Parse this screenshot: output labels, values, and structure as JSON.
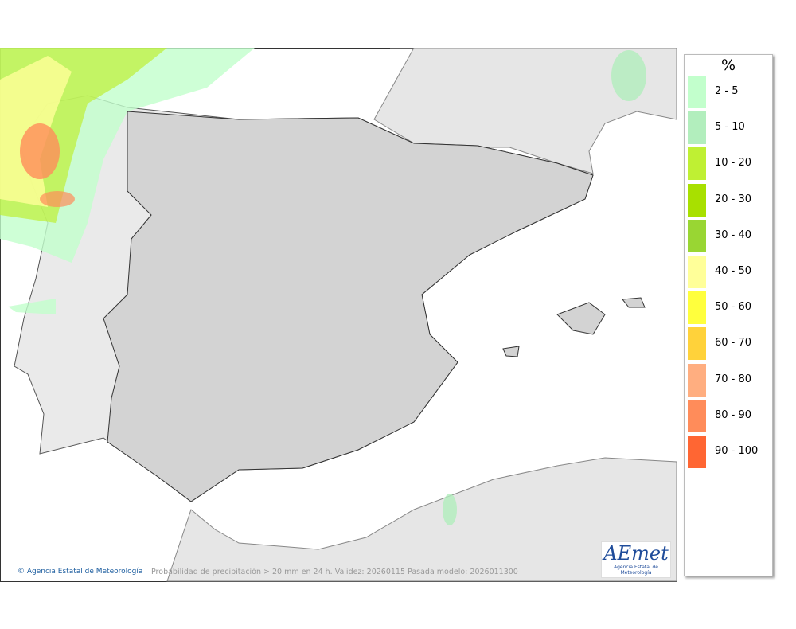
{
  "map": {
    "caption": "Probabilidad de precipitación > 20 mm en 24 h. Validez: 20260115 Pasada modelo: 2026011300",
    "credit": "Agencia Estatal de Meteorología",
    "logo": {
      "text": "AEmet",
      "subtitle": "Agencia Estatal de Meteorología"
    }
  },
  "legend": {
    "title": "%",
    "items": [
      {
        "label": "2 - 5",
        "color": "#c2ffcc"
      },
      {
        "label": "5 - 10",
        "color": "#b2eebd"
      },
      {
        "label": "10 - 20",
        "color": "#bff033"
      },
      {
        "label": "20 - 30",
        "color": "#a8e000"
      },
      {
        "label": "30 - 40",
        "color": "#99d633"
      },
      {
        "label": "40 - 50",
        "color": "#ffff99"
      },
      {
        "label": "50 - 60",
        "color": "#ffff3d"
      },
      {
        "label": "60 - 70",
        "color": "#ffd23a"
      },
      {
        "label": "70 - 80",
        "color": "#ffae80"
      },
      {
        "label": "80 - 90",
        "color": "#ff8c5a"
      },
      {
        "label": "90 - 100",
        "color": "#ff6633"
      }
    ]
  }
}
